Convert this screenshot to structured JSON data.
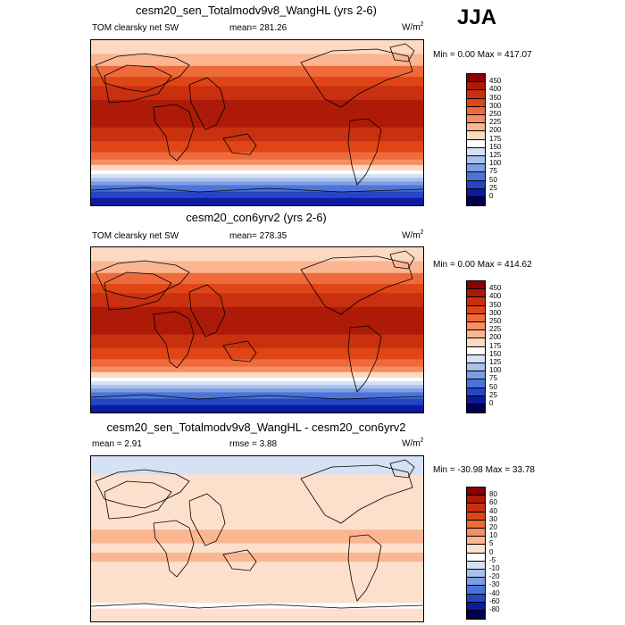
{
  "season": "JJA",
  "chart_data": [
    {
      "type": "heatmap",
      "subtype": "global-map",
      "title": "cesm20_sen_Totalmodv9v8_WangHL (yrs 2-6)",
      "left_label": "TOM clearsky net SW",
      "center_label": "mean= 281.26",
      "units": "W/m",
      "units_exp": "2",
      "minmax": "Min =   0.00 Max = 417.07",
      "levels": [
        "450",
        "400",
        "350",
        "300",
        "250",
        "225",
        "200",
        "175",
        "150",
        "125",
        "100",
        "75",
        "50",
        "25",
        "0"
      ],
      "colors": [
        "#8b0000",
        "#ad1a07",
        "#c9300f",
        "#e04516",
        "#ef6a3a",
        "#f78e60",
        "#fbb591",
        "#fdd9c2",
        "#ffffff",
        "#d5e1f5",
        "#a9c0ec",
        "#7d9ce2",
        "#4c74d8",
        "#2345c6",
        "#0c1aa0",
        "#00005a"
      ],
      "bands": [
        {
          "lat": 90,
          "idx": 7
        },
        {
          "lat": 75,
          "idx": 6
        },
        {
          "lat": 62,
          "idx": 4
        },
        {
          "lat": 50,
          "idx": 3
        },
        {
          "lat": 40,
          "idx": 2
        },
        {
          "lat": 25,
          "idx": 1
        },
        {
          "lat": 10,
          "idx": 1
        },
        {
          "lat": -5,
          "idx": 2
        },
        {
          "lat": -20,
          "idx": 3
        },
        {
          "lat": -32,
          "idx": 4
        },
        {
          "lat": -40,
          "idx": 5
        },
        {
          "lat": -46,
          "idx": 7
        },
        {
          "lat": -52,
          "idx": 8
        },
        {
          "lat": -56,
          "idx": 9
        },
        {
          "lat": -60,
          "idx": 10
        },
        {
          "lat": -64,
          "idx": 11
        },
        {
          "lat": -68,
          "idx": 12
        },
        {
          "lat": -75,
          "idx": 13
        },
        {
          "lat": -82,
          "idx": 14
        }
      ]
    },
    {
      "type": "heatmap",
      "subtype": "global-map",
      "title": "cesm20_con6yrv2 (yrs 2-6)",
      "left_label": "TOM clearsky net SW",
      "center_label": "mean= 278.35",
      "units": "W/m",
      "units_exp": "2",
      "minmax": "Min =   0.00 Max = 414.62",
      "levels": [
        "450",
        "400",
        "350",
        "300",
        "250",
        "225",
        "200",
        "175",
        "150",
        "125",
        "100",
        "75",
        "50",
        "25",
        "0"
      ],
      "colors": [
        "#8b0000",
        "#ad1a07",
        "#c9300f",
        "#e04516",
        "#ef6a3a",
        "#f78e60",
        "#fbb591",
        "#fdd9c2",
        "#ffffff",
        "#d5e1f5",
        "#a9c0ec",
        "#7d9ce2",
        "#4c74d8",
        "#2345c6",
        "#0c1aa0",
        "#00005a"
      ],
      "bands": [
        {
          "lat": 90,
          "idx": 7
        },
        {
          "lat": 75,
          "idx": 6
        },
        {
          "lat": 62,
          "idx": 4
        },
        {
          "lat": 50,
          "idx": 3
        },
        {
          "lat": 40,
          "idx": 2
        },
        {
          "lat": 25,
          "idx": 1
        },
        {
          "lat": 10,
          "idx": 1
        },
        {
          "lat": -5,
          "idx": 2
        },
        {
          "lat": -20,
          "idx": 3
        },
        {
          "lat": -32,
          "idx": 4
        },
        {
          "lat": -40,
          "idx": 5
        },
        {
          "lat": -46,
          "idx": 7
        },
        {
          "lat": -52,
          "idx": 8
        },
        {
          "lat": -56,
          "idx": 9
        },
        {
          "lat": -60,
          "idx": 10
        },
        {
          "lat": -64,
          "idx": 11
        },
        {
          "lat": -68,
          "idx": 12
        },
        {
          "lat": -75,
          "idx": 13
        },
        {
          "lat": -82,
          "idx": 14
        }
      ]
    },
    {
      "type": "heatmap",
      "subtype": "global-map",
      "title": "cesm20_sen_Totalmodv9v8_WangHL - cesm20_con6yrv2",
      "left_label": "mean =   2.91",
      "center_label": "rmse =   3.88",
      "units": "W/m",
      "units_exp": "2",
      "minmax": "Min = -30.98 Max =  33.78",
      "levels": [
        "80",
        "60",
        "40",
        "30",
        "20",
        "10",
        "5",
        "0",
        "-5",
        "-10",
        "-20",
        "-30",
        "-40",
        "-60",
        "-80"
      ],
      "colors": [
        "#8b0000",
        "#ad1a07",
        "#c9300f",
        "#e04516",
        "#ef6a3a",
        "#f78e60",
        "#fbb591",
        "#fde0cc",
        "#ffffff",
        "#d5e1f5",
        "#a9c0ec",
        "#7d9ce2",
        "#4c74d8",
        "#2345c6",
        "#0c1aa0",
        "#00005a"
      ],
      "bands": [
        {
          "lat": 90,
          "idx": 9
        },
        {
          "lat": 70,
          "idx": 7
        },
        {
          "lat": 20,
          "idx": 7
        },
        {
          "lat": 10,
          "idx": 6
        },
        {
          "lat": -5,
          "idx": 7
        },
        {
          "lat": -15,
          "idx": 6
        },
        {
          "lat": -25,
          "idx": 7
        },
        {
          "lat": -70,
          "idx": 8
        },
        {
          "lat": -76,
          "idx": 7
        }
      ]
    }
  ]
}
